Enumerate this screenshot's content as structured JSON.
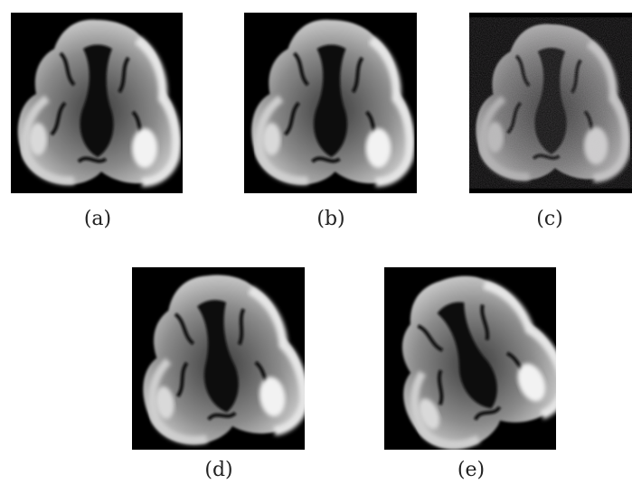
{
  "figure": {
    "panels": [
      {
        "id": "a",
        "caption": "(a)",
        "description_icon": "brain-mri-slice-icon"
      },
      {
        "id": "b",
        "caption": "(b)",
        "description_icon": "brain-mri-slice-icon"
      },
      {
        "id": "c",
        "caption": "(c)",
        "description_icon": "brain-mri-slice-icon"
      },
      {
        "id": "d",
        "caption": "(d)",
        "description_icon": "brain-mri-slice-icon"
      },
      {
        "id": "e",
        "caption": "(e)",
        "description_icon": "brain-mri-slice-icon"
      }
    ],
    "colors": {
      "background": "#ffffff",
      "panel_bg": "#000000",
      "caption": "#222222"
    }
  }
}
